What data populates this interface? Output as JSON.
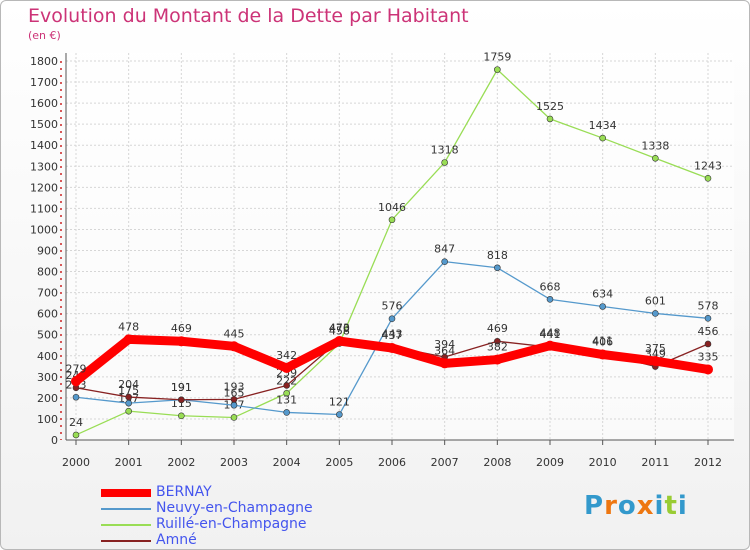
{
  "chart_data": {
    "type": "line",
    "title": "Evolution du Montant de la Dette par Habitant",
    "subtitle": "(en €)",
    "x": [
      "2000",
      "2001",
      "2002",
      "2003",
      "2004",
      "2005",
      "2006",
      "2007",
      "2008",
      "2009",
      "2010",
      "2011",
      "2012"
    ],
    "ylim": [
      0,
      1800
    ],
    "yticks": [
      0,
      100,
      200,
      300,
      400,
      500,
      600,
      700,
      800,
      900,
      1000,
      1100,
      1200,
      1300,
      1400,
      1500,
      1600,
      1700,
      1800
    ],
    "grid": true,
    "legend_position": "bottom-left",
    "series": [
      {
        "name": "BERNAY",
        "color": "#ff0000",
        "values": [
          279,
          478,
          469,
          445,
          342,
          470,
          437,
          364,
          382,
          448,
          406,
          375,
          335
        ]
      },
      {
        "name": "Neuvy-en-Champagne",
        "color": "#5599cc",
        "values": [
          203,
          175,
          191,
          165,
          131,
          121,
          576,
          847,
          818,
          668,
          634,
          601,
          578
        ]
      },
      {
        "name": "Ruillé-en-Champagne",
        "color": "#99dd55",
        "values": [
          24,
          137,
          115,
          107,
          222,
          458,
          1046,
          1318,
          1759,
          1525,
          1434,
          1338,
          1243
        ]
      },
      {
        "name": "Amné",
        "color": "#882222",
        "values": [
          248,
          204,
          191,
          193,
          259,
          473,
          443,
          394,
          469,
          441,
          411,
          349,
          456
        ]
      }
    ]
  },
  "logo": {
    "text": "Proxiti",
    "colors": [
      "#3399cc",
      "#ee7711",
      "#3399cc",
      "#ee7711",
      "#3399cc",
      "#99cc33",
      "#3399cc"
    ]
  }
}
